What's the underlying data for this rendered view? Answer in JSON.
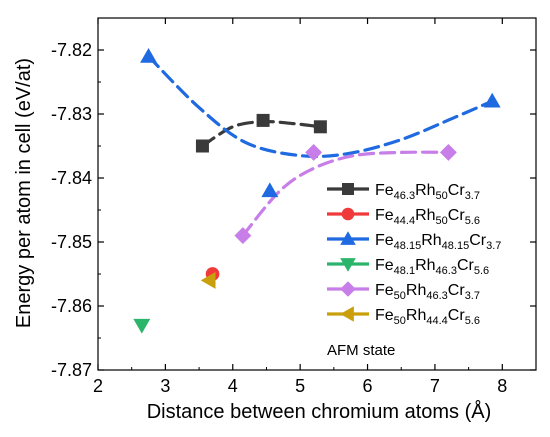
{
  "chart_data": {
    "type": "scatter",
    "xlabel": "Distance between chromium atoms (Å)",
    "ylabel": "Energy per atom in cell (eV/at)",
    "xlim": [
      2,
      8.5
    ],
    "ylim": [
      -7.87,
      -7.815
    ],
    "x_ticks": [
      "2",
      "3",
      "4",
      "5",
      "6",
      "7",
      "8"
    ],
    "y_ticks": [
      "-7.82",
      "-7.83",
      "-7.84",
      "-7.85",
      "-7.86",
      "-7.87"
    ],
    "legend_position": "right",
    "annotation": "AFM state",
    "series": [
      {
        "legend": [
          {
            "t": "Fe",
            "s": false
          },
          {
            "t": "46.3",
            "s": true
          },
          {
            "t": "Rh",
            "s": false
          },
          {
            "t": "50",
            "s": true
          },
          {
            "t": "Cr",
            "s": false
          },
          {
            "t": "3.7",
            "s": true
          }
        ],
        "color": "#3a3a3a",
        "marker": "square",
        "x": [
          3.55,
          4.45,
          5.3
        ],
        "y": [
          -7.835,
          -7.831,
          -7.832
        ],
        "trend_x": [
          3.55,
          4.0,
          4.45,
          4.9,
          5.3
        ],
        "trend_y": [
          -7.835,
          -7.832,
          -7.8312,
          -7.8315,
          -7.832
        ]
      },
      {
        "legend": [
          {
            "t": "Fe",
            "s": false
          },
          {
            "t": "44.4",
            "s": true
          },
          {
            "t": "Rh",
            "s": false
          },
          {
            "t": "50",
            "s": true
          },
          {
            "t": "Cr",
            "s": false
          },
          {
            "t": "5.6",
            "s": true
          }
        ],
        "color": "#f03a3a",
        "marker": "circle",
        "x": [
          3.7
        ],
        "y": [
          -7.855
        ]
      },
      {
        "legend": [
          {
            "t": "Fe",
            "s": false
          },
          {
            "t": "48.15",
            "s": true
          },
          {
            "t": "Rh",
            "s": false
          },
          {
            "t": "48.15",
            "s": true
          },
          {
            "t": "Cr",
            "s": false
          },
          {
            "t": "3.7",
            "s": true
          }
        ],
        "color": "#1f6ae0",
        "marker": "triangle-up",
        "x": [
          2.75,
          4.55,
          7.85
        ],
        "y": [
          -7.821,
          -7.842,
          -7.828
        ],
        "trend_x": [
          2.75,
          3.5,
          4.2,
          5.0,
          5.7,
          6.5,
          7.3,
          7.85
        ],
        "trend_y": [
          -7.821,
          -7.829,
          -7.8345,
          -7.8365,
          -7.8362,
          -7.834,
          -7.8305,
          -7.828
        ]
      },
      {
        "legend": [
          {
            "t": "Fe",
            "s": false
          },
          {
            "t": "48.1",
            "s": true
          },
          {
            "t": "Rh",
            "s": false
          },
          {
            "t": "46.3",
            "s": true
          },
          {
            "t": "Cr",
            "s": false
          },
          {
            "t": "5.6",
            "s": true
          }
        ],
        "color": "#2bb56a",
        "marker": "triangle-down",
        "x": [
          2.65
        ],
        "y": [
          -7.863
        ]
      },
      {
        "legend": [
          {
            "t": "Fe",
            "s": false
          },
          {
            "t": "50",
            "s": true
          },
          {
            "t": "Rh",
            "s": false
          },
          {
            "t": "46.3",
            "s": true
          },
          {
            "t": "Cr",
            "s": false
          },
          {
            "t": "3.7",
            "s": true
          }
        ],
        "color": "#c87ee8",
        "marker": "diamond",
        "x": [
          4.15,
          5.2,
          7.2
        ],
        "y": [
          -7.849,
          -7.836,
          -7.836
        ],
        "trend_x": [
          4.15,
          4.7,
          5.2,
          5.8,
          6.5,
          7.2
        ],
        "trend_y": [
          -7.849,
          -7.842,
          -7.8385,
          -7.8365,
          -7.836,
          -7.836
        ]
      },
      {
        "legend": [
          {
            "t": "Fe",
            "s": false
          },
          {
            "t": "50",
            "s": true
          },
          {
            "t": "Rh",
            "s": false
          },
          {
            "t": "44.4",
            "s": true
          },
          {
            "t": "Cr",
            "s": false
          },
          {
            "t": "5.6",
            "s": true
          }
        ],
        "color": "#c9a00c",
        "marker": "triangle-left",
        "x": [
          3.65
        ],
        "y": [
          -7.856
        ]
      }
    ]
  }
}
